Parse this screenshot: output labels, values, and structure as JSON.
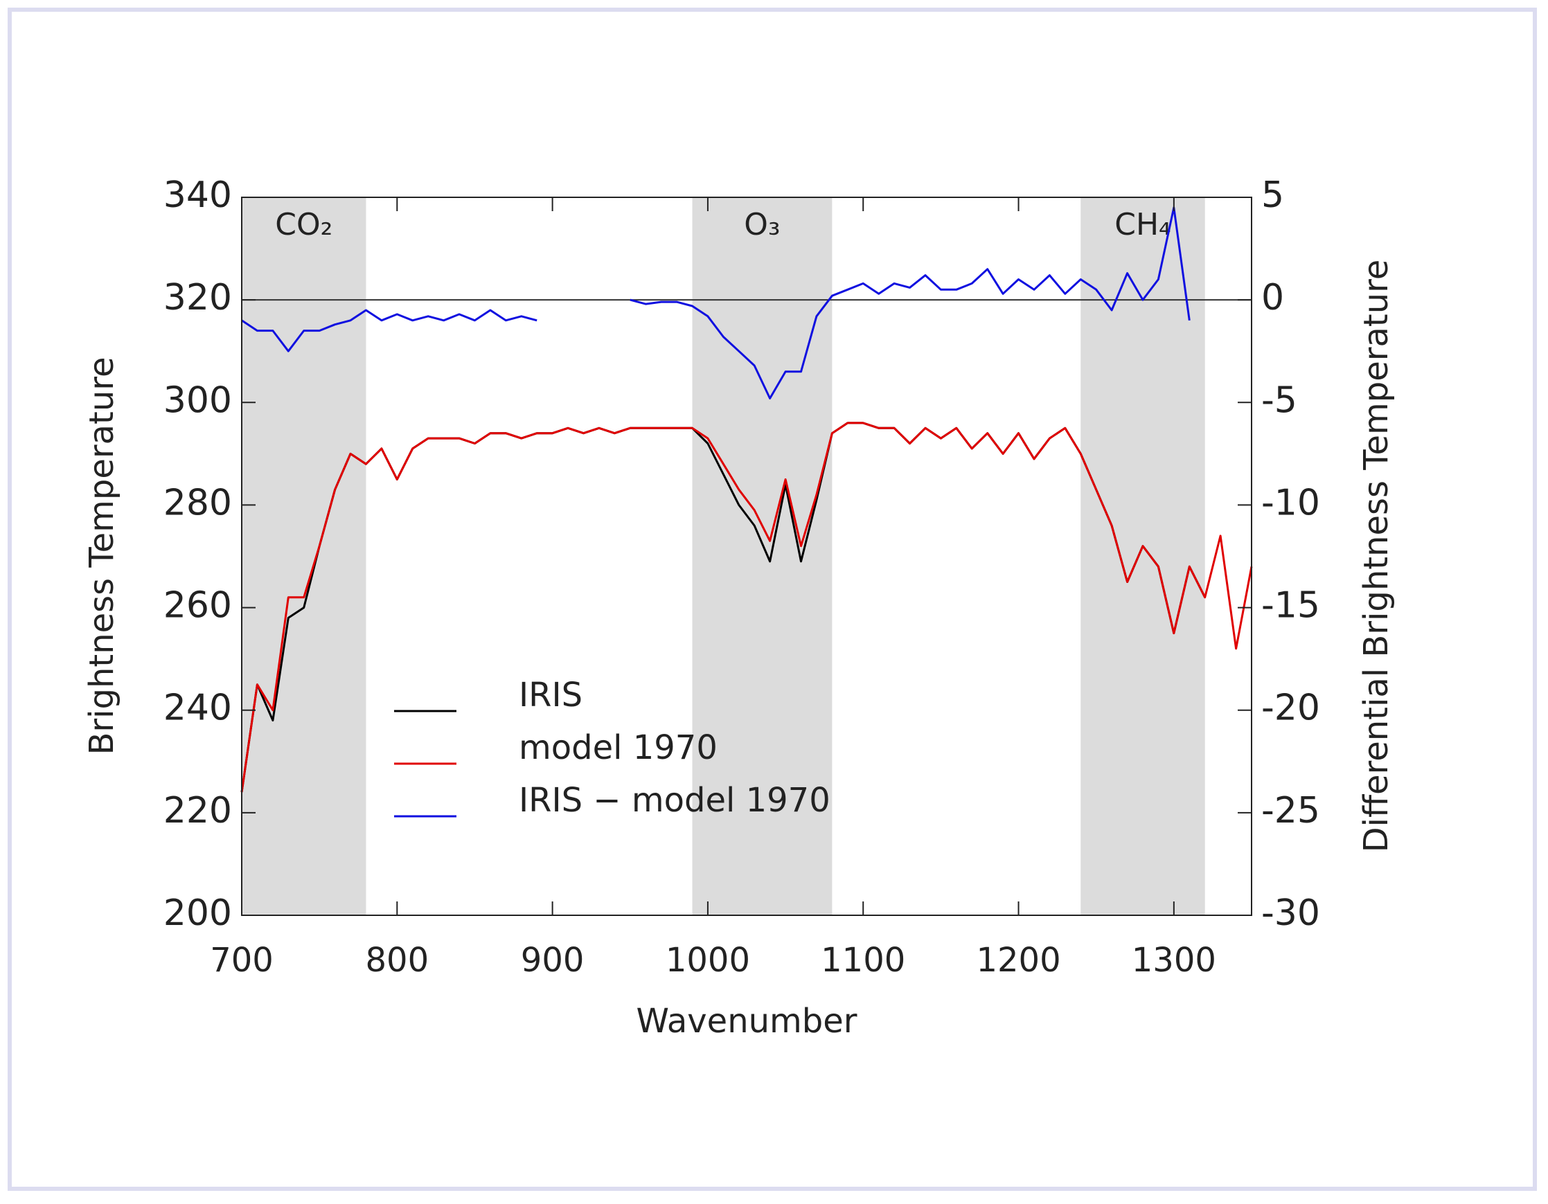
{
  "chart_data": {
    "type": "line",
    "xlabel": "Wavenumber",
    "ylabel": "Brightness Temperature",
    "y2label": "Differential Brightness Temperature",
    "x": [
      700,
      710,
      720,
      730,
      740,
      750,
      760,
      770,
      780,
      790,
      800,
      810,
      820,
      830,
      840,
      850,
      860,
      870,
      880,
      890,
      900,
      910,
      920,
      930,
      940,
      950,
      960,
      970,
      980,
      990,
      1000,
      1010,
      1020,
      1030,
      1040,
      1050,
      1060,
      1070,
      1080,
      1090,
      1100,
      1110,
      1120,
      1130,
      1140,
      1150,
      1160,
      1170,
      1180,
      1190,
      1200,
      1210,
      1220,
      1230,
      1240,
      1250,
      1260,
      1270,
      1280,
      1290,
      1300,
      1310,
      1320,
      1330,
      1340,
      1350
    ],
    "series": [
      {
        "name": "IRIS",
        "color": "#000000",
        "axis": "y",
        "values": [
          224,
          245,
          238,
          258,
          260,
          272,
          283,
          290,
          288,
          291,
          285,
          291,
          293,
          293,
          293,
          292,
          294,
          294,
          293,
          294,
          294,
          295,
          294,
          295,
          294,
          295,
          295,
          295,
          295,
          295,
          292,
          286,
          280,
          276,
          269,
          284,
          269,
          281,
          294,
          296,
          296,
          295,
          295,
          292,
          295,
          293,
          295,
          291,
          294,
          290,
          294,
          289,
          293,
          295,
          290,
          283,
          276,
          265,
          272,
          268,
          255,
          268,
          262,
          null,
          null,
          null
        ]
      },
      {
        "name": "model 1970",
        "color": "#e00000",
        "axis": "y",
        "values": [
          224,
          245,
          240,
          262,
          262,
          272,
          283,
          290,
          288,
          291,
          285,
          291,
          293,
          293,
          293,
          292,
          294,
          294,
          293,
          294,
          294,
          295,
          294,
          295,
          294,
          295,
          295,
          295,
          295,
          295,
          293,
          288,
          283,
          279,
          273,
          285,
          272,
          282,
          294,
          296,
          296,
          295,
          295,
          292,
          295,
          293,
          295,
          291,
          294,
          290,
          294,
          289,
          293,
          295,
          290,
          283,
          276,
          265,
          272,
          268,
          255,
          268,
          262,
          274,
          252,
          268
        ]
      },
      {
        "name": "IRIS − model 1970",
        "color": "#1010e0",
        "axis": "y2",
        "values": [
          -1,
          -1.5,
          -1.5,
          -2.5,
          -1.5,
          -1.5,
          -1.2,
          -1,
          -0.5,
          -1,
          -0.7,
          -1,
          -0.8,
          -1,
          -0.7,
          -1,
          -0.5,
          -1,
          -0.8,
          -1,
          null,
          null,
          null,
          null,
          null,
          0,
          -0.2,
          -0.1,
          -0.1,
          -0.3,
          -0.8,
          -1.8,
          -2.5,
          -3.2,
          -4.8,
          -3.5,
          -3.5,
          -0.8,
          0.2,
          0.5,
          0.8,
          0.3,
          0.8,
          0.6,
          1.2,
          0.5,
          0.5,
          0.8,
          1.5,
          0.3,
          1,
          0.5,
          1.2,
          0.3,
          1,
          0.5,
          -0.5,
          1.3,
          0,
          1,
          4.5,
          -1,
          null,
          null,
          null,
          null
        ]
      }
    ],
    "bands": [
      {
        "label": "CO₂",
        "from": 700,
        "to": 780
      },
      {
        "label": "O₃",
        "from": 990,
        "to": 1080
      },
      {
        "label": "CH₄",
        "from": 1240,
        "to": 1320
      }
    ],
    "band_color": "#dcdcdc",
    "hline": {
      "value": 0,
      "axis": "y2"
    },
    "xlim": [
      700,
      1350
    ],
    "xticks": [
      700,
      800,
      900,
      1000,
      1100,
      1200,
      1300
    ],
    "ylim": [
      200,
      340
    ],
    "yticks": [
      200,
      220,
      240,
      260,
      280,
      300,
      320,
      340
    ],
    "y2lim": [
      -30,
      5
    ],
    "y2ticks": [
      -30,
      -25,
      -20,
      -15,
      -10,
      -5,
      0,
      5
    ],
    "legend": "center left"
  }
}
